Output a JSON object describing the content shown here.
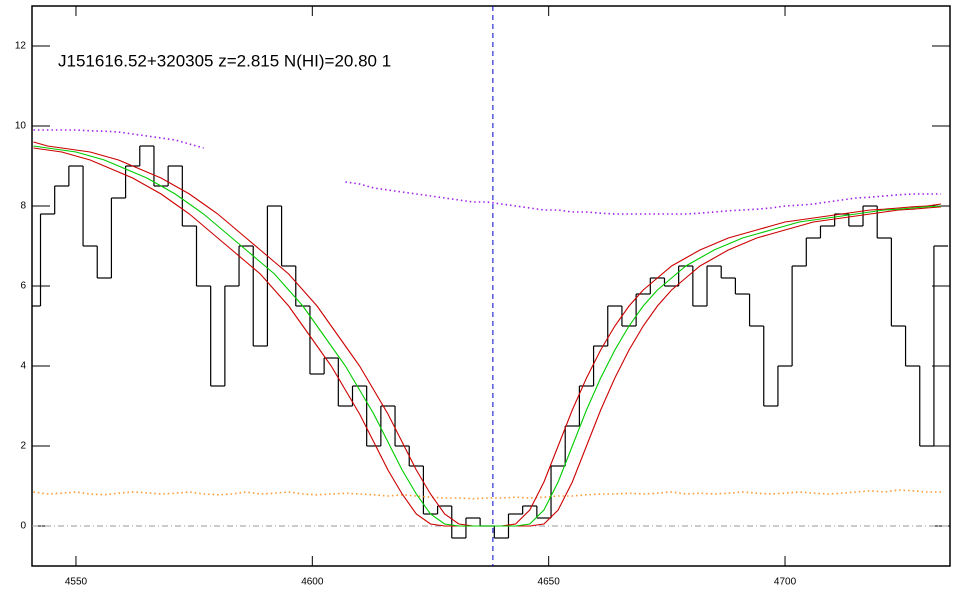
{
  "chart_data": {
    "type": "line",
    "title": "J151616.52+320305 z=2.815 N(HI)=20.80 1",
    "xlim": [
      4540.7,
      4734.9
    ],
    "ylim": [
      -1,
      13
    ],
    "xticks": [
      4550,
      4600,
      4650,
      4700
    ],
    "yticks": [
      0,
      2,
      4,
      6,
      8,
      10,
      12
    ],
    "x": [
      4541,
      4544,
      4547,
      4550,
      4553,
      4556,
      4559,
      4562,
      4565,
      4568,
      4571,
      4574,
      4577,
      4580,
      4583,
      4586,
      4589,
      4592,
      4595,
      4598,
      4601,
      4604,
      4607,
      4610,
      4613,
      4616,
      4619,
      4622,
      4625,
      4628,
      4631,
      4634,
      4637,
      4640,
      4643,
      4646,
      4649,
      4652,
      4655,
      4658,
      4661,
      4664,
      4667,
      4670,
      4673,
      4676,
      4679,
      4682,
      4685,
      4688,
      4691,
      4694,
      4697,
      4700,
      4703,
      4706,
      4709,
      4712,
      4715,
      4718,
      4721,
      4724,
      4727,
      4730,
      4733
    ],
    "series": [
      {
        "style": "steps",
        "color": "#000000",
        "values": [
          5.5,
          7.8,
          8.5,
          9.0,
          7.0,
          6.2,
          8.2,
          9.0,
          9.5,
          8.5,
          9.0,
          7.5,
          6.0,
          3.5,
          6.0,
          7.0,
          4.5,
          8.0,
          6.5,
          5.5,
          3.8,
          4.2,
          3.0,
          3.5,
          2.0,
          3.0,
          2.0,
          1.5,
          0.3,
          0.5,
          -0.3,
          0.2,
          0.0,
          -0.3,
          0.3,
          0.5,
          0.2,
          1.5,
          2.5,
          3.5,
          4.5,
          5.5,
          5.0,
          5.8,
          6.2,
          6.0,
          6.5,
          5.5,
          6.5,
          6.2,
          5.8,
          5.0,
          3.0,
          4.0,
          6.5,
          7.2,
          7.5,
          7.8,
          7.5,
          8.0,
          7.2,
          5.0,
          4.0,
          2.0,
          7.0
        ]
      },
      {
        "style": "dotted",
        "color": "#a020f0",
        "values": [
          9.9,
          9.9,
          9.9,
          9.9,
          9.88,
          9.87,
          9.85,
          9.8,
          9.75,
          9.7,
          9.65,
          9.55,
          9.45,
          null,
          null,
          null,
          null,
          null,
          null,
          null,
          null,
          null,
          8.6,
          8.55,
          8.45,
          8.4,
          8.35,
          8.3,
          8.25,
          8.2,
          8.15,
          8.1,
          8.1,
          8.05,
          8.0,
          7.95,
          7.9,
          7.9,
          7.85,
          7.85,
          7.82,
          7.8,
          7.8,
          7.8,
          7.8,
          7.8,
          7.8,
          7.82,
          7.85,
          7.88,
          7.9,
          7.92,
          7.95,
          8.0,
          8.02,
          8.05,
          8.1,
          8.15,
          8.2,
          8.22,
          8.25,
          8.28,
          8.3,
          8.3,
          8.3
        ]
      },
      {
        "style": "dotted",
        "color": "#ff9933",
        "values": [
          0.85,
          0.8,
          0.82,
          0.85,
          0.8,
          0.78,
          0.82,
          0.85,
          0.83,
          0.8,
          0.82,
          0.85,
          0.8,
          0.78,
          0.8,
          0.85,
          0.8,
          0.82,
          0.85,
          0.8,
          0.78,
          0.8,
          0.82,
          0.8,
          0.78,
          0.75,
          0.78,
          0.75,
          0.72,
          0.7,
          0.7,
          0.68,
          0.7,
          0.7,
          0.72,
          0.7,
          0.72,
          0.75,
          0.75,
          0.78,
          0.8,
          0.8,
          0.82,
          0.8,
          0.82,
          0.85,
          0.8,
          0.82,
          0.8,
          0.82,
          0.85,
          0.82,
          0.8,
          0.82,
          0.85,
          0.82,
          0.8,
          0.82,
          0.85,
          0.88,
          0.85,
          0.9,
          0.88,
          0.85,
          0.85
        ]
      },
      {
        "style": "solid",
        "color": "#cc0000",
        "values": [
          9.6,
          9.5,
          9.45,
          9.4,
          9.35,
          9.25,
          9.15,
          9.0,
          8.85,
          8.7,
          8.5,
          8.3,
          8.05,
          7.8,
          7.5,
          7.2,
          6.9,
          6.6,
          6.3,
          5.9,
          5.5,
          5.0,
          4.5,
          4.0,
          3.4,
          2.8,
          2.1,
          1.4,
          0.8,
          0.3,
          0.05,
          0,
          0,
          0,
          0.05,
          0.4,
          1.1,
          2.0,
          2.9,
          3.7,
          4.4,
          5.0,
          5.5,
          5.9,
          6.2,
          6.5,
          6.7,
          6.9,
          7.05,
          7.2,
          7.3,
          7.4,
          7.5,
          7.6,
          7.65,
          7.7,
          7.75,
          7.8,
          7.85,
          7.9,
          7.92,
          7.95,
          7.98,
          8.0,
          8.05
        ]
      },
      {
        "style": "solid",
        "color": "#cc0000",
        "values": [
          9.45,
          9.4,
          9.35,
          9.25,
          9.15,
          9.0,
          8.85,
          8.7,
          8.5,
          8.3,
          8.05,
          7.8,
          7.5,
          7.2,
          6.9,
          6.6,
          6.3,
          5.9,
          5.5,
          5.0,
          4.5,
          4.0,
          3.4,
          2.8,
          2.1,
          1.4,
          0.8,
          0.3,
          0.05,
          0,
          0,
          0,
          0,
          0,
          0,
          0,
          0.05,
          0.4,
          1.1,
          2.0,
          2.9,
          3.7,
          4.4,
          5.0,
          5.5,
          5.9,
          6.2,
          6.5,
          6.7,
          6.9,
          7.05,
          7.2,
          7.3,
          7.4,
          7.5,
          7.6,
          7.65,
          7.7,
          7.75,
          7.8,
          7.85,
          7.9,
          7.92,
          7.95,
          7.98
        ]
      },
      {
        "style": "solid",
        "color": "#00cc00",
        "values": [
          9.5,
          9.45,
          9.4,
          9.35,
          9.25,
          9.15,
          9.0,
          8.85,
          8.7,
          8.5,
          8.3,
          8.05,
          7.8,
          7.5,
          7.2,
          6.9,
          6.6,
          6.3,
          5.9,
          5.5,
          5.0,
          4.5,
          4.0,
          3.4,
          2.8,
          2.1,
          1.4,
          0.8,
          0.3,
          0.05,
          0,
          0,
          0,
          0,
          0,
          0.05,
          0.4,
          1.1,
          2.0,
          2.9,
          3.7,
          4.4,
          5.0,
          5.5,
          5.9,
          6.2,
          6.5,
          6.7,
          6.9,
          7.05,
          7.2,
          7.3,
          7.4,
          7.5,
          7.6,
          7.65,
          7.7,
          7.75,
          7.8,
          7.85,
          7.9,
          7.92,
          7.95,
          7.98,
          8.0
        ]
      }
    ],
    "reference_line": {
      "value": 0,
      "color": "#999999"
    },
    "vline": {
      "value": 4638.2,
      "color": "#0000cc"
    }
  }
}
